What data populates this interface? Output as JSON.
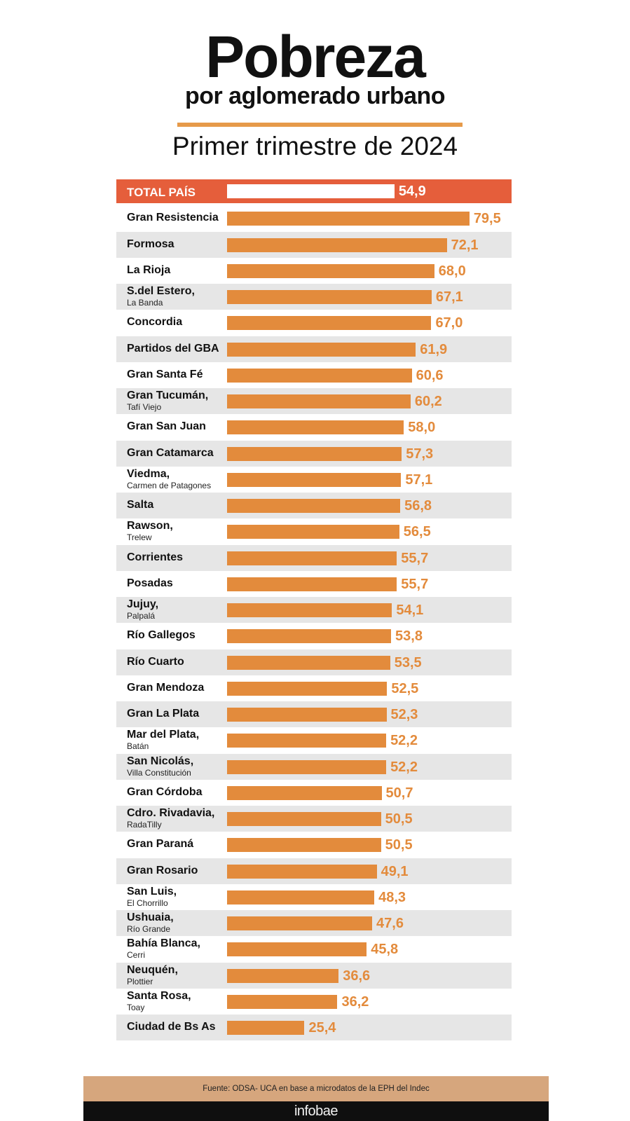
{
  "header": {
    "title": "Pobreza",
    "subtitle": "por aglomerado urbano",
    "period": "Primer trimestre de 2024"
  },
  "chart_data": {
    "type": "bar",
    "orientation": "horizontal",
    "title": "Pobreza por aglomerado urbano",
    "subtitle": "Primer trimestre de 2024",
    "xlim": [
      0,
      80
    ],
    "colors": {
      "bar": "#e38b3c",
      "total_band": "#e55e3b",
      "total_bar": "#ffffff",
      "shade": "#e6e6e6"
    },
    "rows": [
      {
        "name": "TOTAL PAÍS",
        "sub": "",
        "value": 54.9,
        "label": "54,9",
        "total": true
      },
      {
        "name": "Gran Resistencia",
        "sub": "",
        "value": 79.5,
        "label": "79,5"
      },
      {
        "name": "Formosa",
        "sub": "",
        "value": 72.1,
        "label": "72,1"
      },
      {
        "name": "La Rioja",
        "sub": "",
        "value": 68.0,
        "label": "68,0"
      },
      {
        "name": "S.del Estero,",
        "sub": "La Banda",
        "value": 67.1,
        "label": "67,1"
      },
      {
        "name": "Concordia",
        "sub": "",
        "value": 67.0,
        "label": "67,0"
      },
      {
        "name": "Partidos del GBA",
        "sub": "",
        "value": 61.9,
        "label": "61,9"
      },
      {
        "name": "Gran Santa Fé",
        "sub": "",
        "value": 60.6,
        "label": "60,6"
      },
      {
        "name": "Gran Tucumán,",
        "sub": "Tafí Viejo",
        "value": 60.2,
        "label": "60,2"
      },
      {
        "name": "Gran San Juan",
        "sub": "",
        "value": 58.0,
        "label": "58,0"
      },
      {
        "name": "Gran Catamarca",
        "sub": "",
        "value": 57.3,
        "label": "57,3"
      },
      {
        "name": "Viedma,",
        "sub": "Carmen de Patagones",
        "value": 57.1,
        "label": "57,1"
      },
      {
        "name": "Salta",
        "sub": "",
        "value": 56.8,
        "label": "56,8"
      },
      {
        "name": "Rawson,",
        "sub": "Trelew",
        "value": 56.5,
        "label": "56,5"
      },
      {
        "name": "Corrientes",
        "sub": "",
        "value": 55.7,
        "label": "55,7"
      },
      {
        "name": "Posadas",
        "sub": "",
        "value": 55.7,
        "label": "55,7"
      },
      {
        "name": "Jujuy,",
        "sub": "Palpalá",
        "value": 54.1,
        "label": "54,1"
      },
      {
        "name": "Río Gallegos",
        "sub": "",
        "value": 53.8,
        "label": "53,8"
      },
      {
        "name": "Río Cuarto",
        "sub": "",
        "value": 53.5,
        "label": "53,5"
      },
      {
        "name": "Gran Mendoza",
        "sub": "",
        "value": 52.5,
        "label": "52,5"
      },
      {
        "name": "Gran La Plata",
        "sub": "",
        "value": 52.3,
        "label": "52,3"
      },
      {
        "name": "Mar del Plata,",
        "sub": "Batán",
        "value": 52.2,
        "label": "52,2"
      },
      {
        "name": "San Nicolás,",
        "sub": "Villa Constitución",
        "value": 52.2,
        "label": "52,2"
      },
      {
        "name": "Gran Córdoba",
        "sub": "",
        "value": 50.7,
        "label": "50,7"
      },
      {
        "name": "Cdro. Rivadavia,",
        "sub": "RadaTilly",
        "value": 50.5,
        "label": "50,5"
      },
      {
        "name": "Gran Paraná",
        "sub": "",
        "value": 50.5,
        "label": "50,5"
      },
      {
        "name": "Gran Rosario",
        "sub": "",
        "value": 49.1,
        "label": "49,1"
      },
      {
        "name": "San Luis,",
        "sub": "El Chorrillo",
        "value": 48.3,
        "label": "48,3"
      },
      {
        "name": "Ushuaia,",
        "sub": "Río Grande",
        "value": 47.6,
        "label": "47,6"
      },
      {
        "name": "Bahía Blanca,",
        "sub": "Cerri",
        "value": 45.8,
        "label": "45,8"
      },
      {
        "name": "Neuquén,",
        "sub": "Plottier",
        "value": 36.6,
        "label": "36,6"
      },
      {
        "name": "Santa Rosa,",
        "sub": "Toay",
        "value": 36.2,
        "label": "36,2"
      },
      {
        "name": "Ciudad de Bs As",
        "sub": "",
        "value": 25.4,
        "label": "25,4"
      }
    ]
  },
  "footer": {
    "source": "Fuente: ODSA- UCA en base a microdatos de la EPH del Indec",
    "brand": "infobae"
  }
}
